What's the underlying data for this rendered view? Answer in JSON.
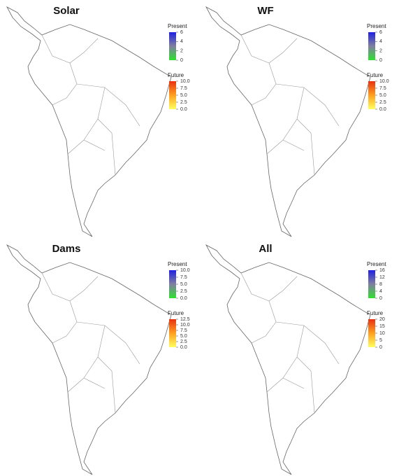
{
  "panels": [
    {
      "title": "Solar",
      "legends": [
        {
          "title": "Present",
          "ticks": [
            "6",
            "4",
            "2",
            "0"
          ]
        },
        {
          "title": "Future",
          "ticks": [
            "10.0",
            "7.5",
            "5.0",
            "2.5",
            "0.0"
          ]
        }
      ]
    },
    {
      "title": "WF",
      "legends": [
        {
          "title": "Present",
          "ticks": [
            "6",
            "4",
            "2",
            "0"
          ]
        },
        {
          "title": "Future",
          "ticks": [
            "10.0",
            "7.5",
            "5.0",
            "2.5",
            "0.0"
          ]
        }
      ]
    },
    {
      "title": "Dams",
      "legends": [
        {
          "title": "Present",
          "ticks": [
            "10.0",
            "7.5",
            "5.0",
            "2.5",
            "0.0"
          ]
        },
        {
          "title": "Future",
          "ticks": [
            "12.5",
            "10.0",
            "7.5",
            "5.0",
            "2.5",
            "0.0"
          ]
        }
      ]
    },
    {
      "title": "All",
      "legends": [
        {
          "title": "Present",
          "ticks": [
            "16",
            "12",
            "8",
            "4",
            "0"
          ]
        },
        {
          "title": "Future",
          "ticks": [
            "20",
            "15",
            "10",
            "5",
            "0"
          ]
        }
      ]
    }
  ]
}
